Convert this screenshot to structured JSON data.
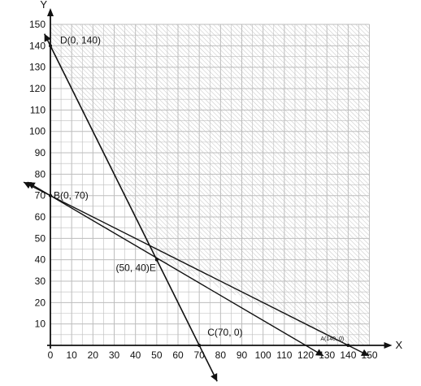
{
  "chart_data": {
    "type": "line",
    "xlabel": "X",
    "ylabel": "Y",
    "xlim": [
      0,
      150
    ],
    "ylim": [
      0,
      150
    ],
    "x_ticks": [
      0,
      10,
      20,
      30,
      40,
      50,
      60,
      70,
      80,
      90,
      100,
      110,
      120,
      130,
      140,
      150
    ],
    "y_ticks": [
      10,
      20,
      30,
      40,
      50,
      60,
      70,
      80,
      90,
      100,
      110,
      120,
      130,
      140,
      150
    ],
    "grid": true,
    "series": [
      {
        "x": [
          0,
          70
        ],
        "y": [
          140,
          0
        ]
      },
      {
        "x": [
          0,
          120
        ],
        "y": [
          70,
          0
        ]
      },
      {
        "x": [
          0,
          140
        ],
        "y": [
          70,
          0
        ]
      }
    ],
    "shaded_region": {
      "vertices": [
        [
          0,
          140
        ],
        [
          50,
          40
        ],
        [
          140,
          0
        ]
      ],
      "description": "above the constraint lines"
    },
    "points": [
      {
        "label": "D(0, 140)",
        "x": 0,
        "y": 140
      },
      {
        "label": "B(0, 70)",
        "x": 0,
        "y": 70
      },
      {
        "label": "(50, 40)E",
        "x": 50,
        "y": 40
      },
      {
        "label": "C(70, 0)",
        "x": 70,
        "y": 0
      },
      {
        "label": "A(140, 0)",
        "x": 140,
        "y": 0
      }
    ],
    "colors": {
      "lines": "#111111",
      "grid": "#bdbdbd",
      "shade": "#cfcfcf"
    }
  }
}
